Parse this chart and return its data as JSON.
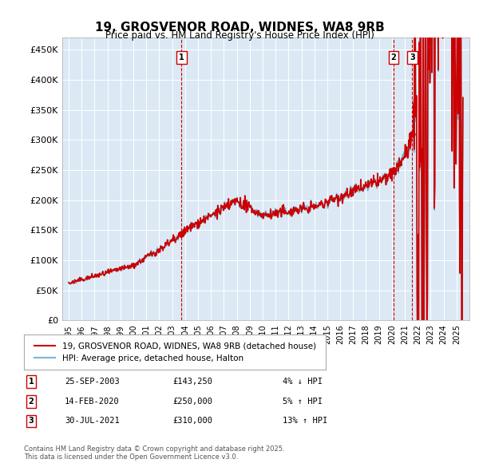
{
  "title": "19, GROSVENOR ROAD, WIDNES, WA8 9RB",
  "subtitle": "Price paid vs. HM Land Registry's House Price Index (HPI)",
  "ylabel_ticks": [
    "£0",
    "£50K",
    "£100K",
    "£150K",
    "£200K",
    "£250K",
    "£300K",
    "£350K",
    "£400K",
    "£450K"
  ],
  "ytick_values": [
    0,
    50000,
    100000,
    150000,
    200000,
    250000,
    300000,
    350000,
    400000,
    450000
  ],
  "ylim": [
    0,
    470000
  ],
  "bg_color": "#dce9f5",
  "red_line_color": "#cc0000",
  "blue_line_color": "#7ab4d8",
  "vline_color": "#cc0000",
  "sale_markers": [
    {
      "year": 2003.73,
      "price": 143250,
      "label": "1"
    },
    {
      "year": 2020.12,
      "price": 250000,
      "label": "2"
    },
    {
      "year": 2021.58,
      "price": 310000,
      "label": "3"
    }
  ],
  "legend_line1": "19, GROSVENOR ROAD, WIDNES, WA8 9RB (detached house)",
  "legend_line2": "HPI: Average price, detached house, Halton",
  "table_rows": [
    {
      "num": "1",
      "date": "25-SEP-2003",
      "price": "£143,250",
      "pct": "4% ↓ HPI"
    },
    {
      "num": "2",
      "date": "14-FEB-2020",
      "price": "£250,000",
      "pct": "5% ↑ HPI"
    },
    {
      "num": "3",
      "date": "30-JUL-2021",
      "price": "£310,000",
      "pct": "13% ↑ HPI"
    }
  ],
  "footer": "Contains HM Land Registry data © Crown copyright and database right 2025.\nThis data is licensed under the Open Government Licence v3.0."
}
